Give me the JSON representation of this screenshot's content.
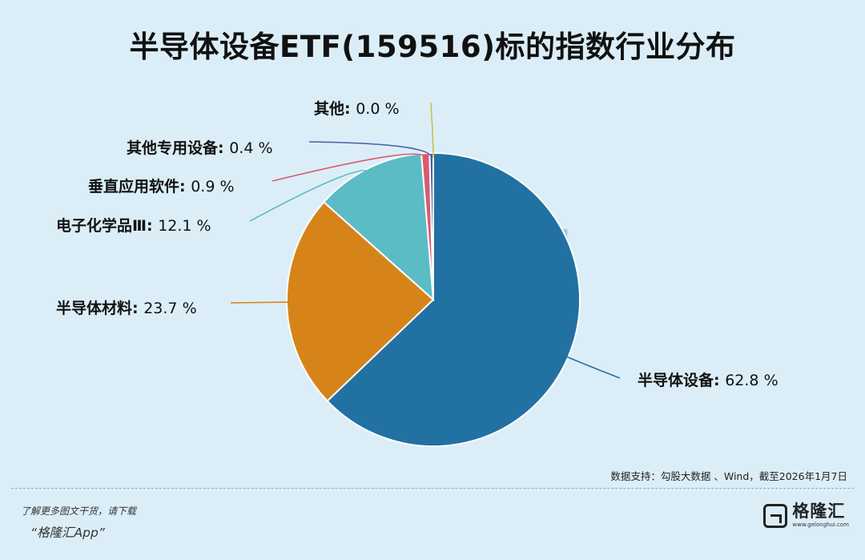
{
  "title": "半导体设备ETF(159516)标的指数行业分布",
  "source": "数据支持：勾股大数据 、Wind，截至2026年1月7日",
  "footer": {
    "line1": "了解更多图文干货，请下载",
    "line2": "“格隆汇App”"
  },
  "logo": {
    "name": "格隆汇",
    "url": "www.gelonghui.com"
  },
  "watermark": {
    "left": "格隆汇",
    "right": "勾股大数据"
  },
  "chart_data": {
    "type": "pie",
    "title": "半导体设备ETF(159516)标的指数行业分布",
    "slices": [
      {
        "label": "半导体设备",
        "value": 62.8,
        "display": "62.8 %",
        "color": "#2271a3"
      },
      {
        "label": "半导体材料",
        "value": 23.7,
        "display": "23.7 %",
        "color": "#d6841a"
      },
      {
        "label": "电子化学品Ⅲ",
        "value": 12.1,
        "display": "12.1 %",
        "color": "#5bbcc6"
      },
      {
        "label": "垂直应用软件",
        "value": 0.9,
        "display": "0.9 %",
        "color": "#d95b6c"
      },
      {
        "label": "其他专用设备",
        "value": 0.4,
        "display": "0.4 %",
        "color": "#4a5fa8"
      },
      {
        "label": "其他",
        "value": 0.0,
        "display": "0.0 %",
        "color": "#c9c24a"
      }
    ],
    "legend": "none",
    "labels": "outside-with-leader-lines"
  }
}
